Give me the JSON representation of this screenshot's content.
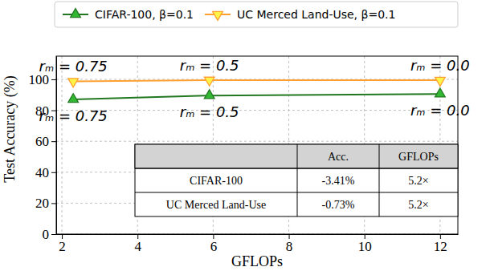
{
  "chart_data": {
    "type": "line",
    "x_label": "GFLOPs",
    "y_label": "Test Accuracy (%)",
    "x": [
      2.3,
      5.9,
      12.0
    ],
    "xlim": [
      1.85,
      12.47
    ],
    "xticks": [
      2,
      4,
      6,
      8,
      10,
      12
    ],
    "ylim": [
      0,
      115
    ],
    "yticks": [
      0,
      20,
      40,
      60,
      80,
      100
    ],
    "grid": true,
    "legend": "top",
    "series": [
      {
        "name": "CIFAR-100, β=0.1",
        "color": "#217821",
        "marker": "triangle-up",
        "line_style": "solid",
        "values": [
          87.0,
          89.5,
          90.5
        ],
        "point_labels": [
          "rₘ = 0.75",
          "rₘ = 0.5",
          "rₘ = 0.0"
        ]
      },
      {
        "name": "UC Merced Land-Use, β=0.1",
        "color": "#ffa030",
        "marker": "triangle-down",
        "line_style": "solid",
        "values": [
          98.7,
          99.5,
          99.4
        ],
        "point_labels": [
          "rₘ = 0.75",
          "rₘ = 0.5",
          "rₘ = 0.0"
        ]
      }
    ],
    "table": {
      "columns": [
        "Acc.",
        "GFLOPs"
      ],
      "rows": [
        [
          "CIFAR-100",
          "-3.41%",
          "5.2×"
        ],
        [
          "UC Merced Land-Use",
          "-0.73%",
          "5.2×"
        ]
      ]
    }
  }
}
